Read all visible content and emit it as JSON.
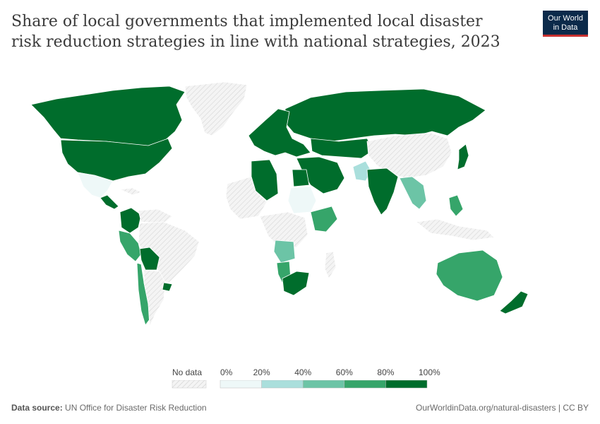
{
  "title": "Share of local governments that implemented local disaster risk reduction strategies in line with national strategies, 2023",
  "logo": {
    "line1": "Our World",
    "line2": "in Data"
  },
  "legend": {
    "no_data_label": "No data",
    "ticks": [
      "0%",
      "20%",
      "40%",
      "60%",
      "80%",
      "100%"
    ],
    "colors": [
      "#eef8f8",
      "#aadfdc",
      "#6cc4a6",
      "#36a56a",
      "#006d2c"
    ]
  },
  "source": {
    "label": "Data source:",
    "text": "UN Office for Disaster Risk Reduction"
  },
  "url_text": "OurWorldinData.org/natural-disasters | CC BY",
  "colors": {
    "no_data": "#eeeeee",
    "border": "#ffffff",
    "title": "#3a3a3a"
  },
  "regions": [
    {
      "name": "Greenland",
      "band": "none"
    },
    {
      "name": "Canada",
      "band": "100"
    },
    {
      "name": "United States",
      "band": "100"
    },
    {
      "name": "Mexico",
      "band": "0"
    },
    {
      "name": "Central America",
      "band": "100"
    },
    {
      "name": "Colombia",
      "band": "100"
    },
    {
      "name": "Venezuela",
      "band": "none"
    },
    {
      "name": "Brazil",
      "band": "none"
    },
    {
      "name": "Peru",
      "band": "80"
    },
    {
      "name": "Bolivia",
      "band": "100"
    },
    {
      "name": "Chile",
      "band": "80"
    },
    {
      "name": "Argentina",
      "band": "none"
    },
    {
      "name": "Russia",
      "band": "100"
    },
    {
      "name": "Europe",
      "band": "100"
    },
    {
      "name": "China",
      "band": "none"
    },
    {
      "name": "India",
      "band": "100"
    },
    {
      "name": "Pakistan",
      "band": "20"
    },
    {
      "name": "Australia",
      "band": "80"
    },
    {
      "name": "New Zealand",
      "band": "100"
    },
    {
      "name": "Japan",
      "band": "100"
    },
    {
      "name": "South Africa",
      "band": "100"
    },
    {
      "name": "Namibia",
      "band": "80"
    },
    {
      "name": "Angola",
      "band": "60"
    },
    {
      "name": "Kenya",
      "band": "80"
    },
    {
      "name": "Egypt",
      "band": "100"
    },
    {
      "name": "Sudan",
      "band": "0"
    },
    {
      "name": "Saudi Arabia",
      "band": "100"
    },
    {
      "name": "Algeria",
      "band": "100"
    }
  ]
}
